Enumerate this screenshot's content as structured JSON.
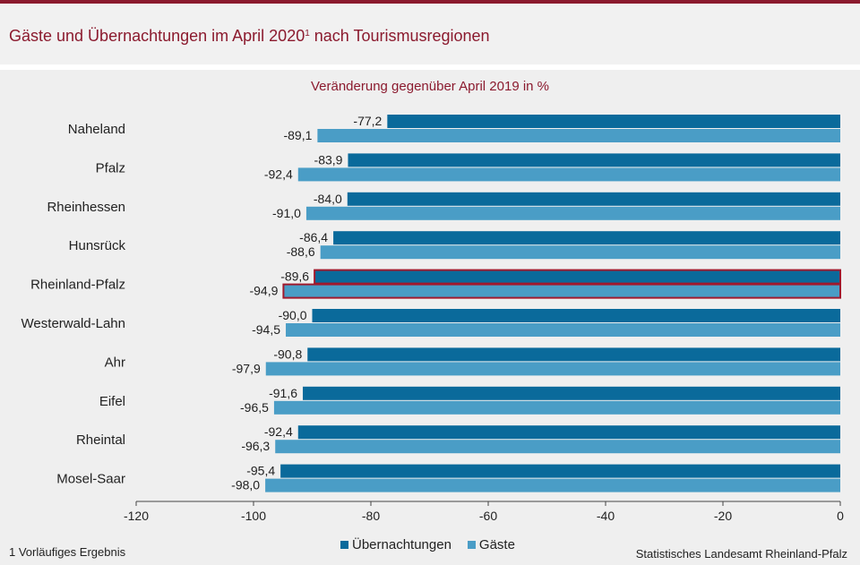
{
  "page": {
    "title_main": "Gäste und Übernachtungen im April 2020",
    "title_sup": "1",
    "title_rest": " nach Tourismusregionen",
    "footnote": "1 Vorläufiges Ergebnis",
    "source": "Statistisches Landesamt Rheinland-Pfalz"
  },
  "chart_data": {
    "type": "bar",
    "orientation": "horizontal",
    "subtitle": "Veränderung  gegenüber  April 2019 in %",
    "categories": [
      "Naheland",
      "Pfalz",
      "Rheinhessen",
      "Hunsrück",
      "Rheinland-Pfalz",
      "Westerwald-Lahn",
      "Ahr",
      "Eifel",
      "Rheintal",
      "Mosel-Saar"
    ],
    "series": [
      {
        "name": "Übernachtungen",
        "color": "#0a6a9b",
        "values": [
          -77.2,
          -83.9,
          -84.0,
          -86.4,
          -89.6,
          -90.0,
          -90.8,
          -91.6,
          -92.4,
          -95.4
        ],
        "labels": [
          "-77,2",
          "-83,9",
          "-84,0",
          "-86,4",
          "-89,6",
          "-90,0",
          "-90,8",
          "-91,6",
          "-92,4",
          "-95,4"
        ]
      },
      {
        "name": "Gäste",
        "color": "#4a9dc6",
        "values": [
          -89.1,
          -92.4,
          -91.0,
          -88.6,
          -94.9,
          -94.5,
          -97.9,
          -96.5,
          -96.3,
          -98.0
        ],
        "labels": [
          "-89,1",
          "-92,4",
          "-91,0",
          "-88,6",
          "-94,9",
          "-94,5",
          "-97,9",
          "-96,5",
          "-96,3",
          "-98,0"
        ]
      }
    ],
    "highlight_category": "Rheinland-Pfalz",
    "highlight_color": "#a0192d",
    "xlim": [
      -120,
      0
    ],
    "xticks": [
      -120,
      -100,
      -80,
      -60,
      -40,
      -20,
      0
    ],
    "legend_position": "bottom",
    "grid": false
  }
}
